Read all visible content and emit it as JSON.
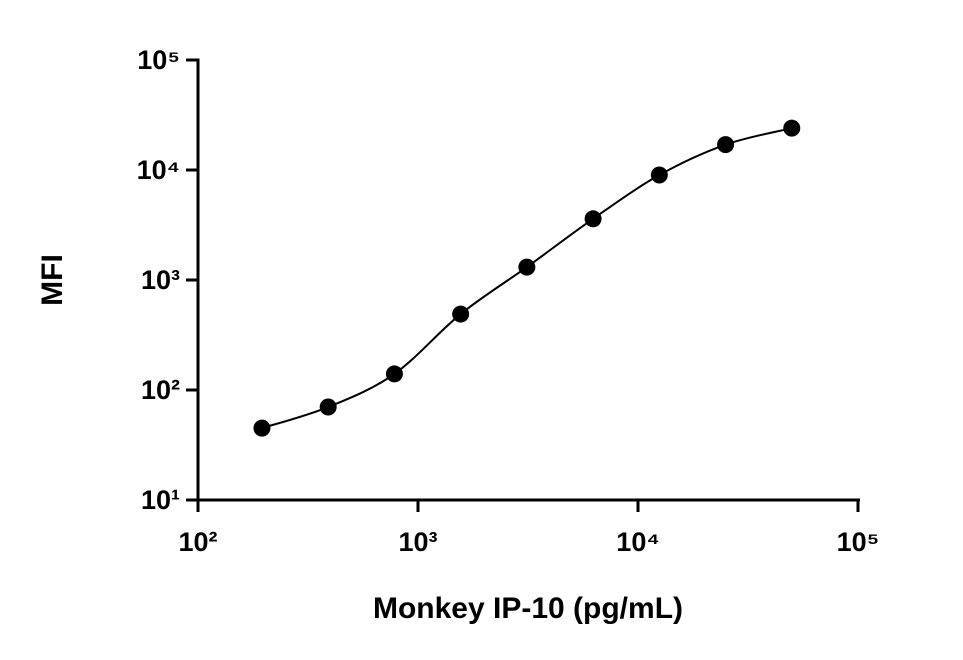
{
  "chart_data": {
    "type": "scatter",
    "x_label": "Monkey IP-10 (pg/mL)",
    "y_label": "MFI",
    "x": [
      195.3,
      390.6,
      781.25,
      1562.5,
      3125,
      6250,
      12500,
      25000,
      50000
    ],
    "series": [
      {
        "color": "#000000",
        "values": [
          45,
          70,
          140,
          490,
          1310,
          3600,
          9000,
          17000,
          24000
        ]
      }
    ],
    "line": "smooth",
    "log_x": true,
    "log_y": true,
    "xlim": [
      100,
      100000
    ],
    "ylim": [
      10,
      100000
    ],
    "xticks": [
      {
        "value": 100,
        "label": "10²"
      },
      {
        "value": 1000,
        "label": "10³"
      },
      {
        "value": 10000,
        "label": "10⁴"
      },
      {
        "value": 100000,
        "label": "10⁵"
      }
    ],
    "yticks": [
      {
        "value": 10,
        "label": "10¹"
      },
      {
        "value": 100,
        "label": "10²"
      },
      {
        "value": 1000,
        "label": "10³"
      },
      {
        "value": 10000,
        "label": "10⁴"
      },
      {
        "value": 100000,
        "label": "10⁵"
      }
    ]
  }
}
